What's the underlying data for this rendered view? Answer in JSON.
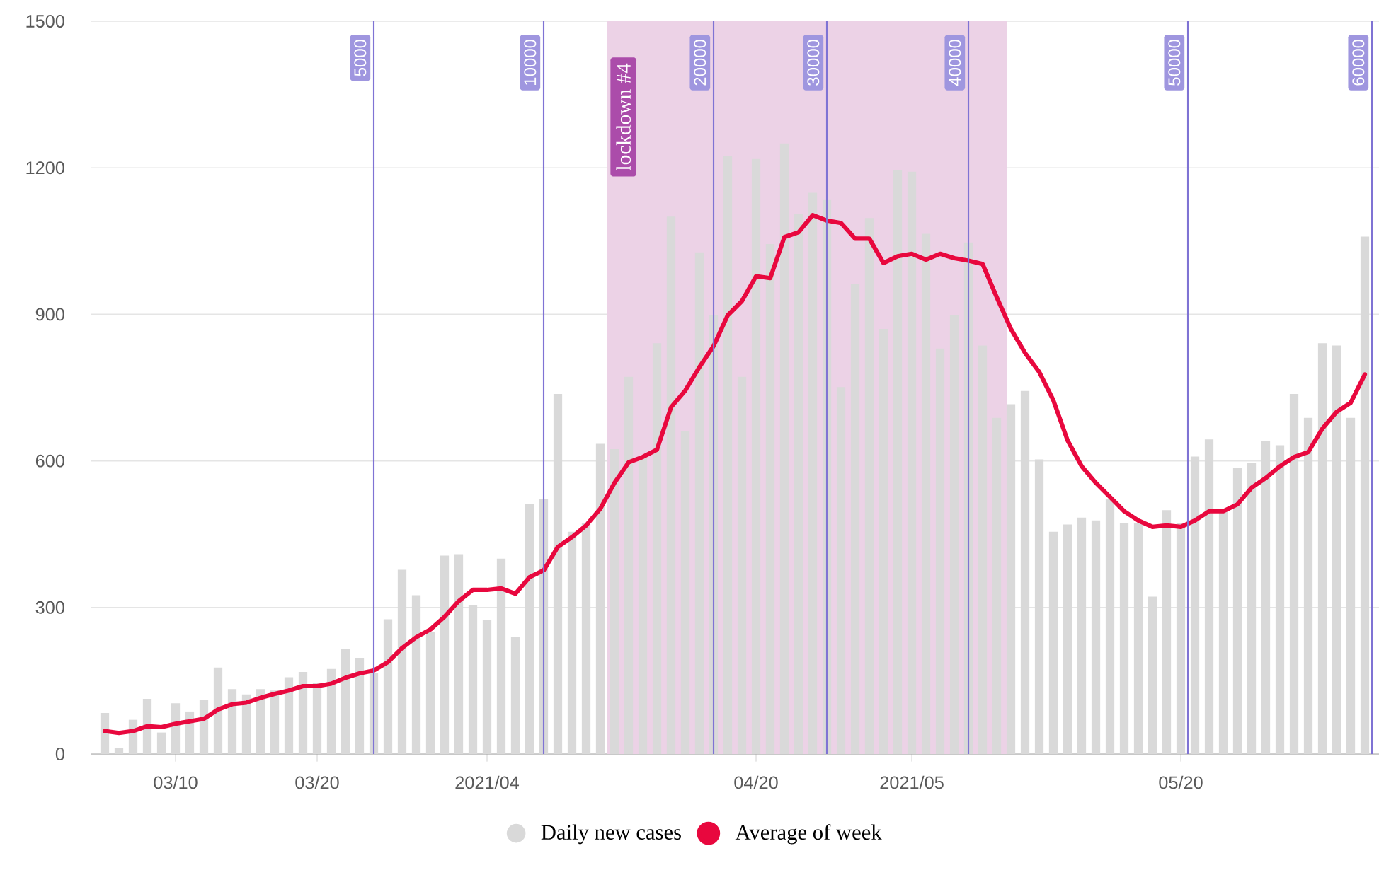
{
  "chart_data": {
    "type": "bar",
    "x": [
      "2021-03-05",
      "2021-03-06",
      "2021-03-07",
      "2021-03-08",
      "2021-03-09",
      "2021-03-10",
      "2021-03-11",
      "2021-03-12",
      "2021-03-13",
      "2021-03-14",
      "2021-03-15",
      "2021-03-16",
      "2021-03-17",
      "2021-03-18",
      "2021-03-19",
      "2021-03-20",
      "2021-03-21",
      "2021-03-22",
      "2021-03-23",
      "2021-03-24",
      "2021-03-25",
      "2021-03-26",
      "2021-03-27",
      "2021-03-28",
      "2021-03-29",
      "2021-03-30",
      "2021-03-31",
      "2021-04-01",
      "2021-04-02",
      "2021-04-03",
      "2021-04-04",
      "2021-04-05",
      "2021-04-06",
      "2021-04-07",
      "2021-04-08",
      "2021-04-09",
      "2021-04-10",
      "2021-04-11",
      "2021-04-12",
      "2021-04-13",
      "2021-04-14",
      "2021-04-15",
      "2021-04-16",
      "2021-04-17",
      "2021-04-18",
      "2021-04-19",
      "2021-04-20",
      "2021-04-21",
      "2021-04-22",
      "2021-04-23",
      "2021-04-24",
      "2021-04-25",
      "2021-04-26",
      "2021-04-27",
      "2021-04-28",
      "2021-04-29",
      "2021-04-30",
      "2021-05-01",
      "2021-05-02",
      "2021-05-03",
      "2021-05-04",
      "2021-05-05",
      "2021-05-06",
      "2021-05-07",
      "2021-05-08",
      "2021-05-09",
      "2021-05-10",
      "2021-05-11",
      "2021-05-12",
      "2021-05-13",
      "2021-05-14",
      "2021-05-15",
      "2021-05-16",
      "2021-05-17",
      "2021-05-18",
      "2021-05-19",
      "2021-05-20",
      "2021-05-21",
      "2021-05-22",
      "2021-05-23",
      "2021-05-24",
      "2021-05-25",
      "2021-05-26",
      "2021-05-27",
      "2021-05-28",
      "2021-05-29",
      "2021-05-30",
      "2021-05-31",
      "2021-06-01",
      "2021-06-02"
    ],
    "series": [
      {
        "name": "Daily new cases",
        "color": "#d9d9d9",
        "values": [
          84,
          12,
          70,
          113,
          44,
          104,
          87,
          110,
          177,
          133,
          122,
          133,
          130,
          157,
          168,
          145,
          174,
          215,
          197,
          165,
          276,
          377,
          325,
          250,
          406,
          409,
          305,
          275,
          400,
          240,
          511,
          522,
          737,
          455,
          473,
          635,
          624,
          772,
          610,
          841,
          1100,
          661,
          1027,
          899,
          1224,
          772,
          1218,
          1044,
          1250,
          1105,
          1149,
          1134,
          751,
          963,
          1097,
          870,
          1195,
          1192,
          1065,
          830,
          899,
          1047,
          836,
          688,
          716,
          743,
          603,
          455,
          470,
          484,
          478,
          522,
          473,
          473,
          322,
          499,
          473,
          609,
          644,
          499,
          586,
          595,
          641,
          632,
          737,
          688,
          841,
          836,
          688,
          1059
        ]
      },
      {
        "type": "line",
        "name": "Average of week",
        "color": "#e8083e",
        "values": [
          47,
          43,
          47,
          57,
          55,
          62,
          67,
          72,
          91,
          102,
          105,
          115,
          123,
          130,
          139,
          139,
          144,
          156,
          165,
          171,
          188,
          217,
          239,
          255,
          281,
          313,
          336,
          336,
          339,
          328,
          362,
          376,
          424,
          444,
          468,
          502,
          555,
          597,
          608,
          623,
          710,
          744,
          792,
          835,
          898,
          927,
          978,
          974,
          1058,
          1068,
          1103,
          1092,
          1087,
          1055,
          1055,
          1005,
          1019,
          1024,
          1012,
          1024,
          1015,
          1010,
          1003,
          935,
          870,
          821,
          782,
          724,
          642,
          589,
          555,
          526,
          497,
          478,
          465,
          468,
          465,
          478,
          497,
          497,
          511,
          545,
          565,
          589,
          608,
          618,
          666,
          700,
          719,
          777
        ]
      }
    ],
    "xlim": [
      "2021-03-04",
      "2021-06-03"
    ],
    "xticks": [
      {
        "value": "2021-03-10",
        "label": "03/10"
      },
      {
        "value": "2021-03-20",
        "label": "03/20"
      },
      {
        "value": "2021-04-01",
        "label": "2021/04"
      },
      {
        "value": "2021-04-20",
        "label": "04/20"
      },
      {
        "value": "2021-05-01",
        "label": "2021/05"
      },
      {
        "value": "2021-05-20",
        "label": "05/20"
      }
    ],
    "ylim": [
      0,
      1500
    ],
    "yticks": [
      0,
      300,
      600,
      900,
      1200,
      1500
    ],
    "grid": "y",
    "legend": "bottom",
    "bands": [
      {
        "axis": "x",
        "from": "2021-04-09T12:00",
        "to": "2021-05-07T18:00",
        "label": "lockdown #4",
        "color": "#ecd2e6"
      }
    ],
    "ref_lines": [
      {
        "axis": "x",
        "value": "2021-03-24",
        "label": "5000",
        "color": "#7f73d4"
      },
      {
        "axis": "x",
        "value": "2021-04-05",
        "label": "10000",
        "color": "#7f73d4"
      },
      {
        "axis": "x",
        "value": "2021-04-17",
        "label": "20000",
        "color": "#7f73d4"
      },
      {
        "axis": "x",
        "value": "2021-04-25",
        "label": "30000",
        "color": "#7f73d4"
      },
      {
        "axis": "x",
        "value": "2021-05-05",
        "label": "40000",
        "color": "#7f73d4"
      },
      {
        "axis": "x",
        "value": "2021-05-20T12:00",
        "label": "50000",
        "color": "#7f73d4"
      },
      {
        "axis": "x",
        "value": "2021-06-02T12:00",
        "label": "60000",
        "color": "#7f73d4"
      }
    ]
  }
}
